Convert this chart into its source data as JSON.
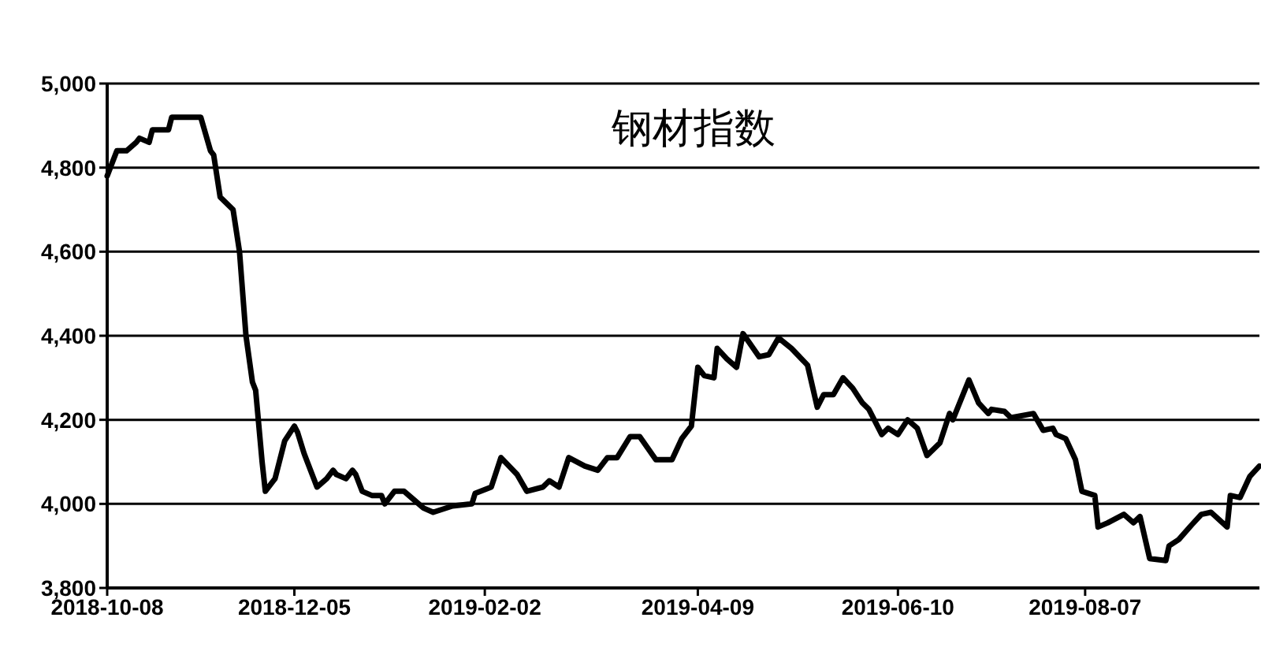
{
  "chart_data": {
    "type": "line",
    "title": "钢材指数",
    "x": [
      "2018-10-08",
      "2018-10-11",
      "2018-10-14",
      "2018-10-17",
      "2018-10-18",
      "2018-10-21",
      "2018-10-22",
      "2018-10-27",
      "2018-10-28",
      "2018-11-06",
      "2018-11-09",
      "2018-11-10",
      "2018-11-12",
      "2018-11-16",
      "2018-11-18",
      "2018-11-20",
      "2018-11-22",
      "2018-11-23",
      "2018-11-25",
      "2018-11-26",
      "2018-11-28",
      "2018-11-29",
      "2018-12-02",
      "2018-12-05",
      "2018-12-06",
      "2018-12-08",
      "2018-12-09",
      "2018-12-11",
      "2018-12-12",
      "2018-12-15",
      "2018-12-17",
      "2018-12-18",
      "2018-12-21",
      "2018-12-23",
      "2018-12-24",
      "2018-12-26",
      "2018-12-29",
      "2019-01-01",
      "2019-01-02",
      "2019-01-05",
      "2019-01-08",
      "2019-01-11",
      "2019-01-14",
      "2019-01-17",
      "2019-01-23",
      "2019-01-29",
      "2019-01-30",
      "2019-02-04",
      "2019-02-07",
      "2019-02-12",
      "2019-02-15",
      "2019-02-20",
      "2019-02-22",
      "2019-02-25",
      "2019-02-28",
      "2019-03-05",
      "2019-03-09",
      "2019-03-12",
      "2019-03-15",
      "2019-03-19",
      "2019-03-22",
      "2019-03-27",
      "2019-04-01",
      "2019-04-04",
      "2019-04-07",
      "2019-04-09",
      "2019-04-11",
      "2019-04-14",
      "2019-04-15",
      "2019-04-18",
      "2019-04-21",
      "2019-04-23",
      "2019-04-28",
      "2019-05-01",
      "2019-05-04",
      "2019-05-08",
      "2019-05-13",
      "2019-05-16",
      "2019-05-18",
      "2019-05-21",
      "2019-05-24",
      "2019-05-27",
      "2019-05-30",
      "2019-06-01",
      "2019-06-05",
      "2019-06-07",
      "2019-06-10",
      "2019-06-13",
      "2019-06-16",
      "2019-06-19",
      "2019-06-23",
      "2019-06-26",
      "2019-06-27",
      "2019-07-02",
      "2019-07-05",
      "2019-07-08",
      "2019-07-09",
      "2019-07-13",
      "2019-07-15",
      "2019-07-22",
      "2019-07-25",
      "2019-07-28",
      "2019-07-29",
      "2019-08-01",
      "2019-08-04",
      "2019-08-06",
      "2019-08-10",
      "2019-08-11",
      "2019-08-14",
      "2019-08-19",
      "2019-08-22",
      "2019-08-24",
      "2019-08-27",
      "2019-09-01",
      "2019-09-02",
      "2019-09-05",
      "2019-09-09",
      "2019-09-12",
      "2019-09-15",
      "2019-09-20",
      "2019-09-21",
      "2019-09-24",
      "2019-09-27",
      "2019-09-30"
    ],
    "series": [
      {
        "color": "#000000",
        "values": [
          4780,
          4840,
          4840,
          4860,
          4870,
          4860,
          4890,
          4890,
          4920,
          4920,
          4840,
          4830,
          4730,
          4700,
          4600,
          4400,
          4290,
          4270,
          4100,
          4030,
          4050,
          4060,
          4150,
          4185,
          4170,
          4120,
          4100,
          4060,
          4040,
          4060,
          4080,
          4070,
          4060,
          4080,
          4070,
          4030,
          4020,
          4020,
          4000,
          4030,
          4030,
          4010,
          3990,
          3980,
          3995,
          4000,
          4025,
          4040,
          4110,
          4070,
          4030,
          4040,
          4055,
          4040,
          4110,
          4090,
          4080,
          4110,
          4110,
          4160,
          4160,
          4105,
          4105,
          4155,
          4185,
          4325,
          4305,
          4300,
          4370,
          4345,
          4325,
          4405,
          4350,
          4355,
          4395,
          4370,
          4330,
          4230,
          4260,
          4260,
          4300,
          4275,
          4240,
          4225,
          4165,
          4180,
          4165,
          4200,
          4180,
          4115,
          4145,
          4215,
          4200,
          4295,
          4240,
          4215,
          4225,
          4220,
          4205,
          4215,
          4175,
          4180,
          4165,
          4155,
          4105,
          4030,
          4020,
          3945,
          3955,
          3975,
          3955,
          3970,
          3870,
          3865,
          3900,
          3915,
          3950,
          3975,
          3980,
          3945,
          4020,
          4015,
          4065,
          4090
        ]
      }
    ],
    "xlim": [
      "2018-10-08",
      "2019-09-30"
    ],
    "xticks": [
      "2018-10-08",
      "2018-12-05",
      "2019-02-02",
      "2019-04-09",
      "2019-06-10",
      "2019-08-07"
    ],
    "ylim": [
      3800,
      5000
    ],
    "yticks": [
      {
        "value": 3800,
        "label": "3,800"
      },
      {
        "value": 4000,
        "label": "4,000"
      },
      {
        "value": 4200,
        "label": "4,200"
      },
      {
        "value": 4400,
        "label": "4,400"
      },
      {
        "value": 4600,
        "label": "4,600"
      },
      {
        "value": 4800,
        "label": "4,800"
      },
      {
        "value": 5000,
        "label": "5,000"
      }
    ],
    "grid": "y",
    "line_style": "solid",
    "marker": "none"
  }
}
